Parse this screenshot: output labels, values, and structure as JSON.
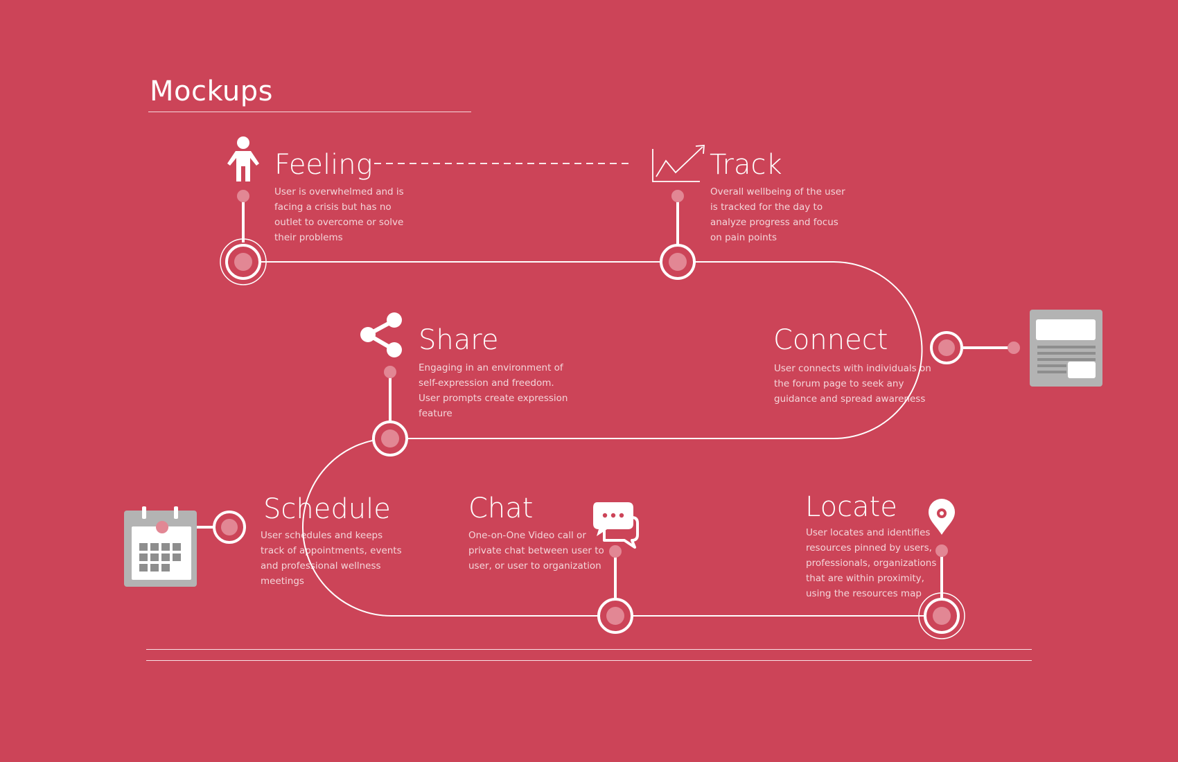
{
  "page": {
    "title": "Mockups"
  },
  "steps": [
    {
      "id": "feeling",
      "title": "Feeling",
      "icon": "person-icon",
      "lines": [
        "User is overwhelmed and is",
        "facing a crisis but has no",
        "outlet to overcome or solve",
        "their problems"
      ]
    },
    {
      "id": "track",
      "title": "Track",
      "icon": "trend-chart-icon",
      "lines": [
        "Overall wellbeing of the user",
        "is tracked for the day to",
        "analyze progress and focus",
        "on pain points"
      ]
    },
    {
      "id": "share",
      "title": "Share",
      "icon": "share-icon",
      "lines": [
        "Engaging in an environment of",
        "self-expression and freedom.",
        "User prompts create expression",
        "feature"
      ]
    },
    {
      "id": "connect",
      "title": "Connect",
      "icon": "forum-page-icon",
      "lines": [
        "User connects with individuals on",
        "the forum page to seek any",
        "guidance and spread awareness"
      ]
    },
    {
      "id": "schedule",
      "title": "Schedule",
      "icon": "calendar-icon",
      "lines": [
        "User schedules and keeps",
        "track of appointments, events",
        "and professional wellness",
        "meetings"
      ]
    },
    {
      "id": "chat",
      "title": "Chat",
      "icon": "chat-bubbles-icon",
      "lines": [
        "One-on-One Video call or",
        "private chat between user to",
        "user, or user to organization"
      ]
    },
    {
      "id": "locate",
      "title": "Locate",
      "icon": "map-pin-icon",
      "lines": [
        "User locates and identifies",
        "resources pinned by users,",
        "professionals, organizations",
        "that are within proximity,",
        "using the resources map"
      ]
    }
  ],
  "colors": {
    "background": "#cc4458",
    "line": "#ffffff",
    "node_fill": "#e28794",
    "icon_gray": "#b3b3b3"
  }
}
